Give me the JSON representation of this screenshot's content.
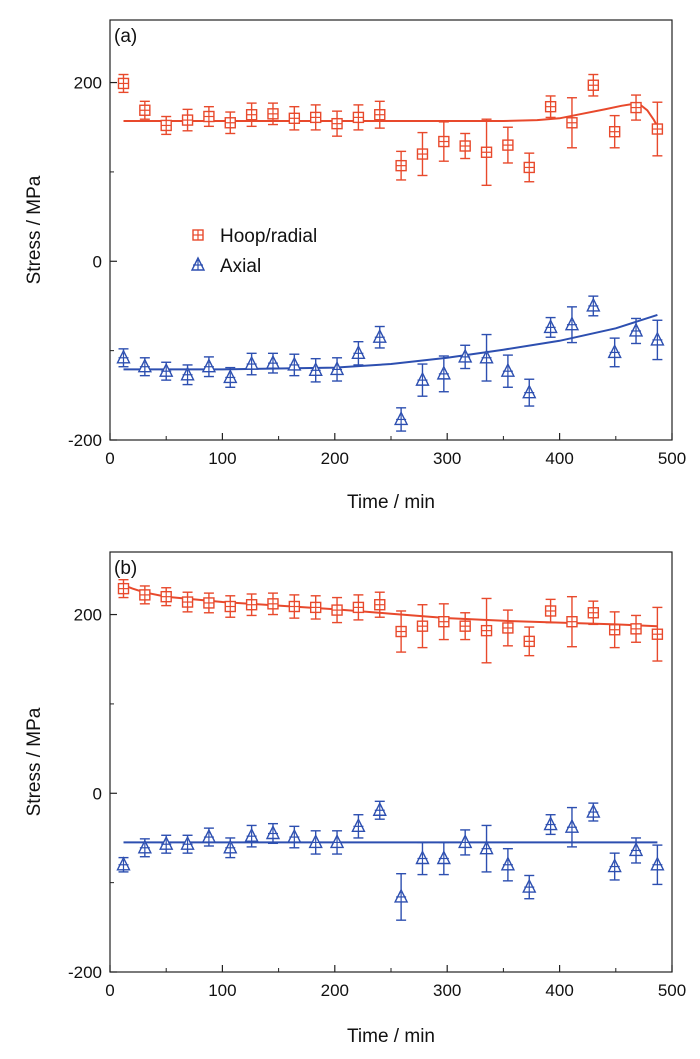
{
  "chart_data": [
    {
      "type": "scatter",
      "panel_label": "(a)",
      "xlabel": "Time / min",
      "ylabel": "Stress / MPa",
      "xlim": [
        0,
        500
      ],
      "ylim": [
        -200,
        270
      ],
      "xticks": [
        0,
        100,
        200,
        300,
        400,
        500
      ],
      "yticks": [
        -200,
        0,
        200
      ],
      "grid": false,
      "legend": {
        "placement": "center-left",
        "entries": [
          "Hoop/radial",
          "Axial"
        ]
      },
      "series": [
        {
          "name": "Hoop/radial",
          "marker": "square-plus",
          "color": "#e8492c",
          "x": [
            12,
            31,
            50,
            69,
            88,
            107,
            126,
            145,
            164,
            183,
            202,
            221,
            240,
            259,
            278,
            297,
            316,
            335,
            354,
            373,
            392,
            411,
            430,
            449,
            468,
            487
          ],
          "y": [
            199,
            169,
            152,
            158,
            162,
            155,
            164,
            165,
            160,
            161,
            154,
            161,
            164,
            107,
            120,
            134,
            129,
            122,
            130,
            105,
            173,
            155,
            197,
            145,
            172,
            148
          ],
          "err": [
            10,
            10,
            10,
            12,
            11,
            12,
            13,
            12,
            13,
            14,
            14,
            14,
            15,
            16,
            24,
            22,
            14,
            37,
            20,
            16,
            12,
            28,
            12,
            18,
            14,
            30
          ],
          "fit": {
            "x": [
              12,
              50,
              100,
              150,
              200,
              250,
              300,
              350,
              380,
              400,
              420,
              440,
              455,
              465,
              472,
              478,
              484,
              489
            ],
            "y": [
              157,
              157,
              157,
              157,
              157,
              157,
              157,
              157,
              158,
              160,
              165,
              170,
              174,
              176,
              175,
              169,
              158,
              146
            ]
          }
        },
        {
          "name": "Axial",
          "marker": "triangle-plus",
          "color": "#2d4fb0",
          "x": [
            12,
            31,
            50,
            69,
            88,
            107,
            126,
            145,
            164,
            183,
            202,
            221,
            240,
            259,
            278,
            297,
            316,
            335,
            354,
            373,
            392,
            411,
            430,
            449,
            468,
            487
          ],
          "y": [
            -108,
            -118,
            -123,
            -127,
            -118,
            -130,
            -115,
            -114,
            -116,
            -122,
            -121,
            -103,
            -85,
            -177,
            -133,
            -126,
            -107,
            -108,
            -123,
            -147,
            -74,
            -71,
            -50,
            -102,
            -78,
            -88
          ],
          "err": [
            10,
            10,
            10,
            11,
            11,
            11,
            12,
            11,
            12,
            13,
            13,
            13,
            12,
            13,
            18,
            20,
            13,
            26,
            18,
            15,
            11,
            20,
            11,
            16,
            14,
            22
          ],
          "fit": {
            "x": [
              12,
              50,
              100,
              150,
              200,
              250,
              300,
              350,
              400,
              450,
              487
            ],
            "y": [
              -121,
              -121,
              -121,
              -120,
              -119,
              -115,
              -108,
              -99,
              -89,
              -75,
              -60
            ]
          }
        }
      ]
    },
    {
      "type": "scatter",
      "panel_label": "(b)",
      "xlabel": "Time / min",
      "ylabel": "Stress / MPa",
      "xlim": [
        0,
        500
      ],
      "ylim": [
        -200,
        270
      ],
      "xticks": [
        0,
        100,
        200,
        300,
        400,
        500
      ],
      "yticks": [
        -200,
        0,
        200
      ],
      "grid": false,
      "series": [
        {
          "name": "Hoop/radial",
          "marker": "square-plus",
          "color": "#e8492c",
          "x": [
            12,
            31,
            50,
            69,
            88,
            107,
            126,
            145,
            164,
            183,
            202,
            221,
            240,
            259,
            278,
            297,
            316,
            335,
            354,
            373,
            392,
            411,
            430,
            449,
            468,
            487
          ],
          "y": [
            229,
            222,
            220,
            214,
            213,
            209,
            211,
            212,
            209,
            208,
            205,
            208,
            211,
            181,
            187,
            192,
            187,
            182,
            185,
            170,
            204,
            192,
            202,
            183,
            184,
            178
          ],
          "err": [
            10,
            10,
            10,
            11,
            11,
            12,
            12,
            12,
            13,
            13,
            14,
            14,
            14,
            23,
            24,
            20,
            15,
            36,
            20,
            16,
            13,
            28,
            13,
            20,
            15,
            30
          ],
          "fit": {
            "x": [
              12,
              20,
              30,
              50,
              100,
              150,
              200,
              250,
              300,
              350,
              400,
              450,
              487
            ],
            "y": [
              233,
              229,
              225,
              220,
              214,
              210,
              206,
              201,
              196,
              193,
              191,
              189,
              187
            ]
          }
        },
        {
          "name": "Axial",
          "marker": "triangle-plus",
          "color": "#2d4fb0",
          "x": [
            12,
            31,
            50,
            69,
            88,
            107,
            126,
            145,
            164,
            183,
            202,
            221,
            240,
            259,
            278,
            297,
            316,
            335,
            354,
            373,
            392,
            411,
            430,
            449,
            468,
            487
          ],
          "y": [
            -80,
            -61,
            -57,
            -57,
            -49,
            -61,
            -48,
            -45,
            -49,
            -55,
            -55,
            -37,
            -19,
            -116,
            -73,
            -73,
            -55,
            -62,
            -80,
            -105,
            -35,
            -38,
            -21,
            -82,
            -64,
            -80
          ],
          "err": [
            8,
            10,
            10,
            10,
            10,
            11,
            12,
            11,
            12,
            13,
            13,
            13,
            10,
            26,
            18,
            18,
            14,
            26,
            18,
            13,
            11,
            22,
            10,
            15,
            14,
            22
          ],
          "fit": {
            "x": [
              12,
              487
            ],
            "y": [
              -55,
              -55
            ]
          }
        }
      ]
    }
  ]
}
